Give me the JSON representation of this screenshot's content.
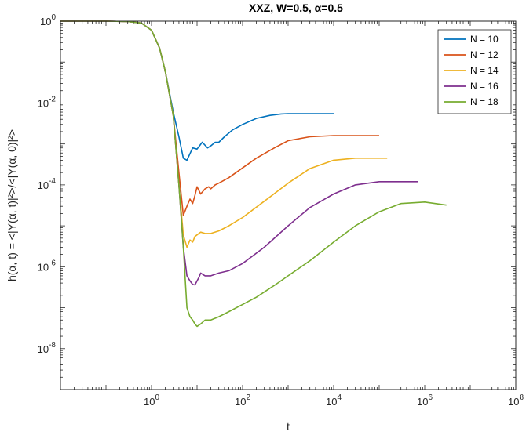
{
  "chart_data": {
    "type": "line",
    "title": "XXZ, W=0.5, α=0.5",
    "xlabel": "t",
    "ylabel": "h(α, t) = <|Y(α, t)|²>/<|Y(α, 0)|²>",
    "xscale": "log",
    "yscale": "log",
    "xlim": [
      0.01,
      100000000.0
    ],
    "ylim": [
      1e-09,
      1
    ],
    "x_ticks": [
      {
        "value": 1,
        "base": "10",
        "exp": "0"
      },
      {
        "value": 100,
        "base": "10",
        "exp": "2"
      },
      {
        "value": 10000,
        "base": "10",
        "exp": "4"
      },
      {
        "value": 1000000,
        "base": "10",
        "exp": "6"
      },
      {
        "value": 100000000,
        "base": "10",
        "exp": "8"
      }
    ],
    "y_ticks": [
      {
        "value": 1,
        "base": "10",
        "exp": "0"
      },
      {
        "value": 0.01,
        "base": "10",
        "exp": "-2"
      },
      {
        "value": 0.0001,
        "base": "10",
        "exp": "-4"
      },
      {
        "value": 1e-06,
        "base": "10",
        "exp": "-6"
      },
      {
        "value": 1e-08,
        "base": "10",
        "exp": "-8"
      }
    ],
    "grid": false,
    "legend_position": "top-right",
    "series": [
      {
        "name": "N = 10",
        "color": "#0072BD",
        "x": [
          0.01,
          0.1,
          0.3,
          0.6,
          1,
          1.5,
          2,
          3,
          4,
          5,
          6,
          8,
          10,
          13,
          17,
          20,
          25,
          30,
          40,
          60,
          100,
          200,
          400,
          700,
          1000,
          2000,
          4000,
          10000
        ],
        "y": [
          1,
          1,
          0.98,
          0.9,
          0.6,
          0.22,
          0.06,
          0.006,
          0.0015,
          0.00045,
          0.0004,
          0.0008,
          0.00075,
          0.0011,
          0.0008,
          0.0009,
          0.0011,
          0.0011,
          0.0015,
          0.0022,
          0.003,
          0.0042,
          0.005,
          0.0054,
          0.0055,
          0.0055,
          0.0055,
          0.0055
        ]
      },
      {
        "name": "N = 12",
        "color": "#D95319",
        "x": [
          0.01,
          0.1,
          0.3,
          0.6,
          1,
          1.5,
          2,
          3,
          4,
          5,
          6,
          7,
          8,
          9,
          10,
          12,
          15,
          18,
          20,
          25,
          30,
          50,
          100,
          200,
          500,
          1000,
          3000,
          10000,
          30000,
          100000
        ],
        "y": [
          1,
          1,
          0.98,
          0.9,
          0.6,
          0.22,
          0.06,
          0.005,
          0.0002,
          1.8e-05,
          3e-05,
          4.5e-05,
          3.5e-05,
          5.5e-05,
          9e-05,
          6e-05,
          8e-05,
          9e-05,
          8e-05,
          0.0001,
          0.00011,
          0.00015,
          0.00026,
          0.00045,
          0.0008,
          0.0012,
          0.0015,
          0.0016,
          0.0016,
          0.0016
        ]
      },
      {
        "name": "N = 14",
        "color": "#EDB120",
        "x": [
          0.01,
          0.1,
          0.3,
          0.6,
          1,
          1.5,
          2,
          3,
          4,
          5,
          6,
          7,
          8,
          9,
          10,
          12,
          15,
          20,
          30,
          50,
          100,
          300,
          1000,
          3000,
          10000,
          30000,
          100000,
          150000
        ],
        "y": [
          1,
          1,
          0.98,
          0.9,
          0.6,
          0.22,
          0.06,
          0.005,
          0.0001,
          6e-06,
          3e-06,
          4.5e-06,
          4e-06,
          5.5e-06,
          6e-06,
          7e-06,
          6.5e-06,
          6.5e-06,
          7.5e-06,
          1e-05,
          1.6e-05,
          4e-05,
          0.00011,
          0.00025,
          0.0004,
          0.00045,
          0.00045,
          0.00045
        ]
      },
      {
        "name": "N = 16",
        "color": "#7E2F8E",
        "x": [
          0.01,
          0.1,
          0.3,
          0.6,
          1,
          1.5,
          2,
          3,
          4,
          5,
          6,
          7,
          8,
          9,
          10,
          11,
          12,
          15,
          20,
          30,
          50,
          100,
          300,
          1000,
          3000,
          10000,
          30000,
          100000,
          300000,
          700000
        ],
        "y": [
          1,
          1,
          0.98,
          0.9,
          0.6,
          0.22,
          0.06,
          0.005,
          0.0001,
          3e-06,
          6e-07,
          4.5e-07,
          3.7e-07,
          3.6e-07,
          4.5e-07,
          5.5e-07,
          7e-07,
          6e-07,
          6e-07,
          7e-07,
          8e-07,
          1.2e-06,
          3e-06,
          1e-05,
          2.8e-05,
          6e-05,
          0.0001,
          0.00012,
          0.00012,
          0.00012
        ]
      },
      {
        "name": "N = 18",
        "color": "#77AC30",
        "x": [
          0.01,
          0.1,
          0.3,
          0.6,
          1,
          1.5,
          2,
          3,
          4,
          5,
          6,
          7,
          8,
          9,
          10,
          12,
          15,
          20,
          30,
          50,
          100,
          200,
          500,
          1000,
          3000,
          10000,
          30000,
          100000,
          300000,
          1000000,
          3000000
        ],
        "y": [
          1,
          1,
          0.98,
          0.9,
          0.6,
          0.22,
          0.06,
          0.005,
          0.0001,
          3e-06,
          1e-07,
          6e-08,
          5e-08,
          4e-08,
          3.5e-08,
          4e-08,
          5e-08,
          5e-08,
          6e-08,
          8e-08,
          1.2e-07,
          1.8e-07,
          3.5e-07,
          6e-07,
          1.4e-06,
          4e-06,
          1e-05,
          2.2e-05,
          3.5e-05,
          3.8e-05,
          3.2e-05
        ]
      }
    ]
  }
}
